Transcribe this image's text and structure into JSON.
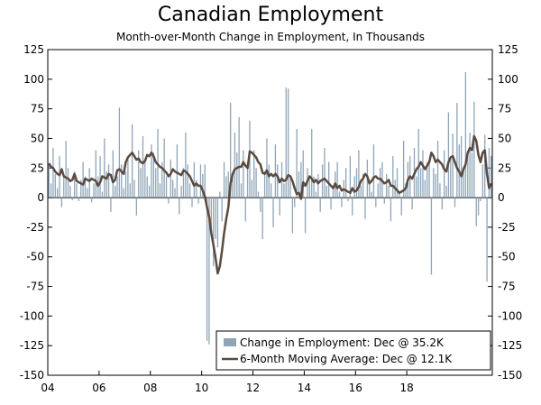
{
  "chart_data": {
    "type": "bar+line",
    "title": "Canadian Employment",
    "subtitle": "Month-over-Month Change in Employment, In Thousands",
    "ylim": [
      -150,
      125
    ],
    "yticks": [
      125,
      100,
      75,
      50,
      25,
      0,
      -25,
      -50,
      -75,
      -100,
      -125,
      -150
    ],
    "xticks": [
      "04",
      "06",
      "08",
      "10",
      "12",
      "14",
      "16",
      "18"
    ],
    "x_start": "2004-01",
    "x_end": "2019-12",
    "bar_color": "#8ea5b8",
    "line_color": "#5a4a40",
    "series": [
      {
        "name": "Change in Employment",
        "legend": "Change in Employment: Dec @ 35.2K",
        "values": [
          28,
          12,
          42,
          20,
          8,
          35,
          -8,
          18,
          48,
          25,
          10,
          -2,
          22,
          12,
          -3,
          15,
          30,
          18,
          8,
          25,
          -4,
          12,
          40,
          18,
          35,
          5,
          50,
          22,
          28,
          -12,
          40,
          10,
          18,
          76,
          28,
          8,
          22,
          35,
          12,
          62,
          15,
          -15,
          40,
          25,
          52,
          30,
          18,
          10,
          45,
          38,
          25,
          58,
          12,
          30,
          50,
          18,
          -5,
          32,
          15,
          8,
          45,
          -14,
          10,
          25,
          55,
          28,
          12,
          -8,
          30,
          15,
          -5,
          28,
          20,
          28,
          -121,
          -124,
          -30,
          -58,
          -35,
          -42,
          5,
          -20,
          30,
          18,
          22,
          80,
          20,
          55,
          38,
          68,
          12,
          40,
          -20,
          30,
          65,
          15,
          40,
          25,
          5,
          -12,
          -35,
          22,
          50,
          28,
          12,
          -25,
          45,
          28,
          -15,
          30,
          12,
          93,
          92,
          18,
          -30,
          -8,
          58,
          22,
          30,
          40,
          -30,
          25,
          15,
          58,
          18,
          5,
          20,
          -12,
          28,
          42,
          10,
          30,
          -10,
          8,
          22,
          30,
          5,
          -8,
          15,
          25,
          -3,
          35,
          -15,
          18,
          25,
          40,
          10,
          20,
          -18,
          32,
          15,
          5,
          45,
          -8,
          12,
          25,
          30,
          -5,
          20,
          10,
          -20,
          35,
          15,
          25,
          5,
          -15,
          48,
          12,
          30,
          35,
          -10,
          42,
          18,
          58,
          25,
          40,
          15,
          30,
          30,
          -65,
          25,
          20,
          48,
          12,
          -10,
          40,
          10,
          72,
          35,
          54,
          -8,
          80,
          45,
          52,
          26,
          106,
          38,
          55,
          38,
          81,
          -24,
          -15,
          -3,
          28,
          53,
          -71,
          42,
          35.2
        ]
      },
      {
        "name": "6-Month Moving Average",
        "legend": "6-Month Moving Average: Dec @ 12.1K",
        "values": [
          29,
          26,
          25,
          22,
          20,
          19,
          24,
          18,
          17,
          16,
          14,
          15,
          20,
          14,
          13,
          12,
          11,
          16,
          15,
          14,
          16,
          15,
          14,
          10,
          13,
          18,
          17,
          16,
          20,
          19,
          13,
          15,
          23,
          24,
          22,
          20,
          30,
          34,
          36,
          38,
          35,
          32,
          33,
          30,
          29,
          31,
          36,
          35,
          38,
          35,
          30,
          28,
          26,
          25,
          23,
          21,
          18,
          20,
          24,
          22,
          21,
          20,
          19,
          23,
          22,
          20,
          18,
          14,
          10,
          12,
          10,
          10,
          6,
          1,
          -8,
          -16,
          -30,
          -40,
          -51,
          -64,
          -58,
          -45,
          -30,
          -18,
          -8,
          12,
          20,
          24,
          25,
          26,
          26,
          30,
          27,
          25,
          39,
          38,
          36,
          34,
          30,
          28,
          21,
          20,
          23,
          18,
          20,
          18,
          20,
          18,
          13,
          16,
          14,
          15,
          19,
          18,
          14,
          8,
          3,
          4,
          -1,
          13,
          10,
          14,
          18,
          16,
          13,
          15,
          12,
          14,
          15,
          16,
          14,
          12,
          10,
          8,
          12,
          8,
          10,
          6,
          7,
          6,
          5,
          4,
          8,
          5,
          6,
          9,
          14,
          16,
          20,
          18,
          12,
          14,
          17,
          18,
          16,
          16,
          14,
          12,
          13,
          15,
          10,
          10,
          8,
          6,
          4,
          5,
          6,
          8,
          15,
          18,
          16,
          20,
          24,
          26,
          30,
          27,
          24,
          27,
          30,
          38,
          35,
          30,
          32,
          30,
          28,
          24,
          22,
          30,
          34,
          35,
          30,
          25,
          22,
          18,
          24,
          28,
          38,
          42,
          40,
          52,
          48,
          36,
          30,
          38,
          40,
          20,
          8,
          12.1
        ]
      }
    ]
  }
}
